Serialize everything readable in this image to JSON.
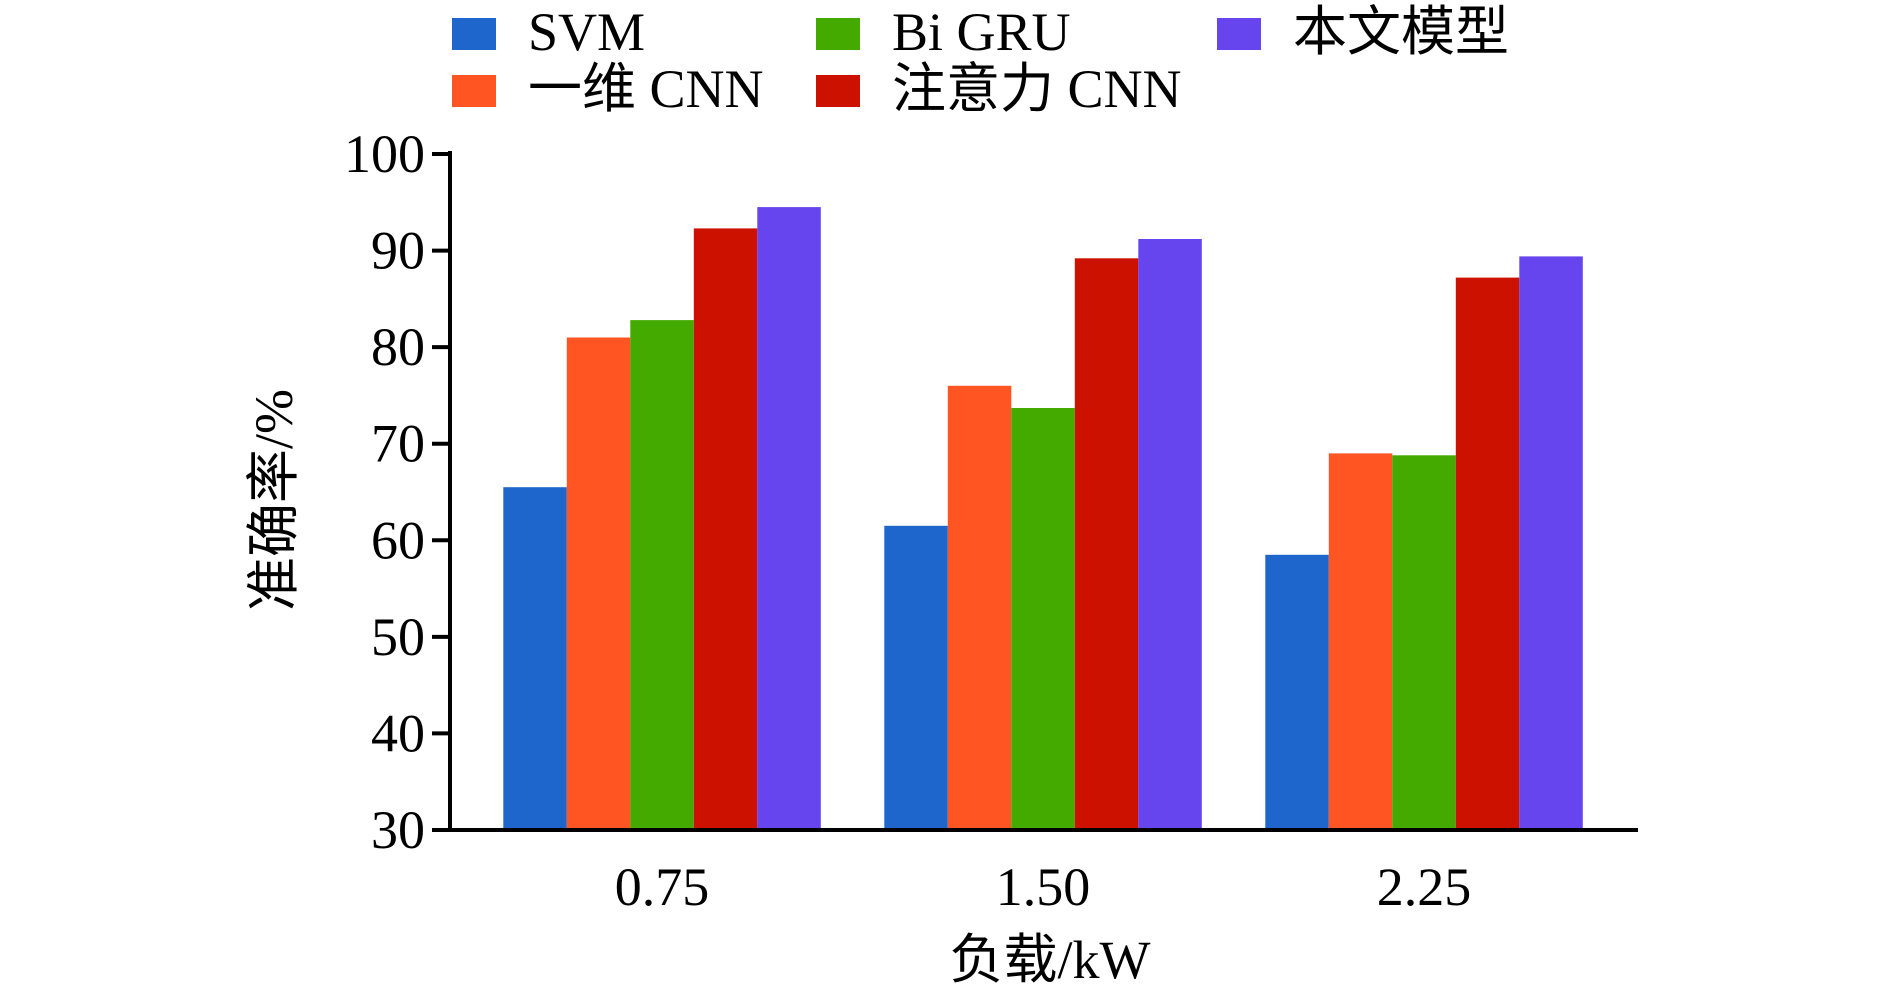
{
  "chart_data": {
    "type": "bar",
    "title": "",
    "xlabel": "负载/kW",
    "ylabel": "准确率/%",
    "categories": [
      "0.75",
      "1.50",
      "2.25"
    ],
    "ylim": [
      30,
      100
    ],
    "yticks": [
      30,
      40,
      50,
      60,
      70,
      80,
      90,
      100
    ],
    "grid": false,
    "legend_position": "top",
    "series": [
      {
        "name": "SVM",
        "color": "#1F66CC",
        "values": [
          65.5,
          61.5,
          58.5
        ]
      },
      {
        "name": "一维 CNN",
        "color": "#FF5522",
        "values": [
          81.0,
          76.0,
          69.0
        ]
      },
      {
        "name": "Bi GRU",
        "color": "#44AA00",
        "values": [
          82.8,
          73.7,
          68.8
        ]
      },
      {
        "name": "注意力 CNN",
        "color": "#CC1100",
        "values": [
          92.3,
          89.2,
          87.2
        ]
      },
      {
        "name": "本文模型",
        "color": "#6644EE",
        "values": [
          94.5,
          91.2,
          89.4
        ]
      }
    ]
  }
}
